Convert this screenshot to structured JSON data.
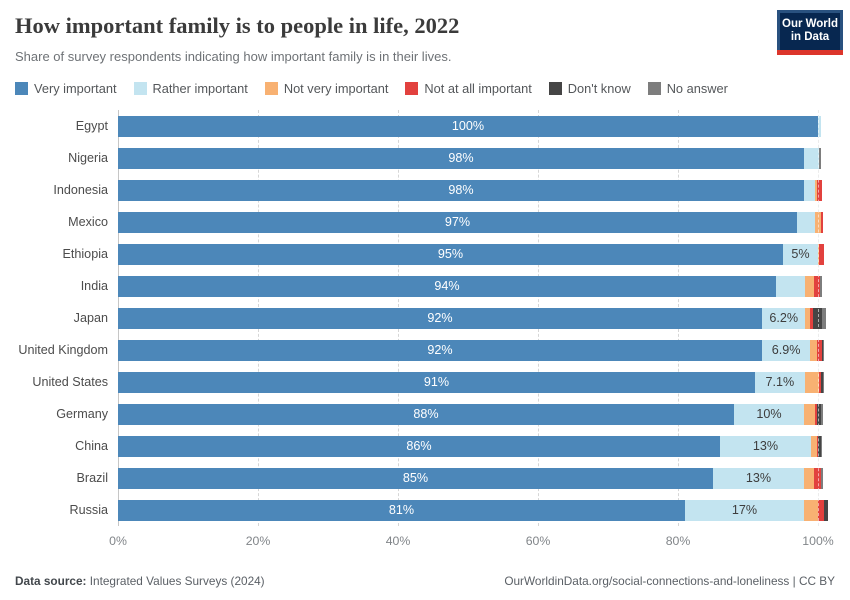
{
  "header": {
    "title": "How important family is to people in life, 2022",
    "subtitle": "Share of survey respondents indicating how important family is in their lives."
  },
  "logo": {
    "line1": "Our World",
    "line2": "in Data"
  },
  "footer": {
    "datasource_label": "Data source:",
    "datasource_value": " Integrated Values Surveys (2024)",
    "link": "OurWorldinData.org/social-connections-and-loneliness | CC BY"
  },
  "colors": {
    "very_important": "#4c87b9",
    "rather_important": "#c3e4f0",
    "not_very_important": "#f8b172",
    "not_at_all_important": "#e2413e",
    "dont_know": "#454545",
    "no_answer": "#7d7d7d",
    "logo_navy": "#072750",
    "logo_red": "#dc352b"
  },
  "chart_data": {
    "type": "bar",
    "stacked": true,
    "orientation": "horizontal",
    "title": "How important family is to people in life, 2022",
    "xlabel": "",
    "ylabel": "",
    "grid": "dashed-vertical",
    "legend_position": "top",
    "xlim": [
      0,
      100
    ],
    "categories": [
      "Egypt",
      "Nigeria",
      "Indonesia",
      "Mexico",
      "Ethiopia",
      "India",
      "Japan",
      "United Kingdom",
      "United States",
      "Germany",
      "China",
      "Brazil",
      "Russia"
    ],
    "series": [
      {
        "name": "Very important",
        "color": "#4c87b9",
        "label_style": "on-dark",
        "values": [
          100,
          98,
          98,
          97,
          95,
          94,
          92,
          92,
          91,
          88,
          86,
          85,
          81
        ],
        "labels": [
          "100%",
          "98%",
          "98%",
          "97%",
          "95%",
          "94%",
          "92%",
          "92%",
          "91%",
          "88%",
          "86%",
          "85%",
          "81%"
        ]
      },
      {
        "name": "Rather important",
        "color": "#c3e4f0",
        "label_style": "on-light",
        "values": [
          0.4,
          2.2,
          1.5,
          2.6,
          5,
          4.2,
          6.2,
          6.9,
          7.1,
          10,
          13,
          13,
          17
        ],
        "labels": [
          "",
          "",
          "",
          "",
          "5%",
          "",
          "6.2%",
          "6.9%",
          "7.1%",
          "10%",
          "13%",
          "13%",
          "17%"
        ]
      },
      {
        "name": "Not very important",
        "color": "#f8b172",
        "label_style": "on-light",
        "values": [
          0,
          0,
          0.3,
          0.8,
          0.2,
          1.3,
          0.7,
          1.0,
          2.0,
          1.5,
          0.9,
          1.4,
          2.0
        ],
        "labels": [
          "",
          "",
          "",
          "",
          "",
          "",
          "",
          "",
          "",
          "",
          "",
          "",
          ""
        ]
      },
      {
        "name": "Not at all important",
        "color": "#e2413e",
        "label_style": "on-dark",
        "values": [
          0,
          0,
          0.8,
          0.3,
          0.6,
          0.8,
          0.4,
          0.7,
          0.3,
          0.3,
          0.1,
          1.0,
          0.9
        ],
        "labels": [
          "",
          "",
          "",
          "",
          "",
          "",
          "",
          "",
          "",
          "",
          "",
          "",
          ""
        ]
      },
      {
        "name": "Don't know",
        "color": "#454545",
        "label_style": "on-dark",
        "values": [
          0,
          0,
          0,
          0,
          0,
          0,
          1.3,
          0.1,
          0.3,
          0.6,
          0.4,
          0.1,
          0.5
        ],
        "labels": [
          "",
          "",
          "",
          "",
          "",
          "",
          "",
          "",
          "",
          "",
          "",
          "",
          ""
        ]
      },
      {
        "name": "No answer",
        "color": "#7d7d7d",
        "label_style": "on-dark",
        "values": [
          0,
          0.3,
          0,
          0,
          0,
          0.3,
          0.5,
          0.2,
          0.2,
          0.3,
          0.2,
          0.2,
          0
        ],
        "labels": [
          "",
          "",
          "",
          "",
          "",
          "",
          "",
          "",
          "",
          "",
          "",
          "",
          ""
        ]
      }
    ],
    "x_axis": {
      "tick_values": [
        0,
        20,
        40,
        60,
        80,
        100
      ],
      "tick_labels": [
        "0%",
        "20%",
        "40%",
        "60%",
        "80%",
        "100%"
      ]
    }
  }
}
